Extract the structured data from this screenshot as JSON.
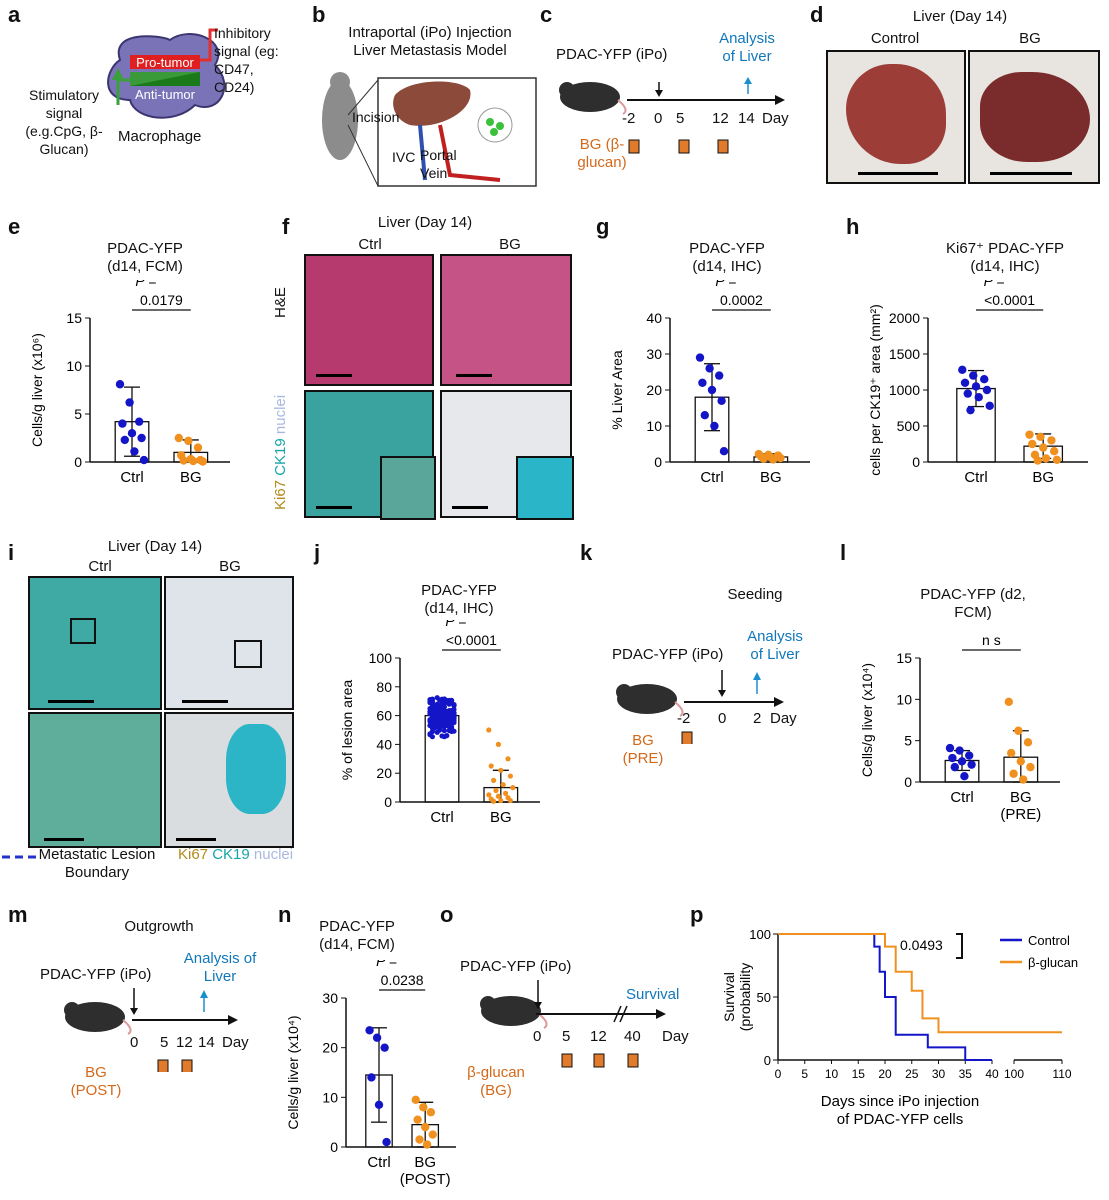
{
  "panels": {
    "a": {
      "letter": "a",
      "inhibitory": "Inhibitory signal (eg: CD47, CD24)",
      "pro": "Pro-tumor",
      "anti": "Anti-tumor",
      "stimulatory": "Stimulatory signal (e.g.CpG, β-Glucan)",
      "macrophage": "Macrophage"
    },
    "b": {
      "letter": "b",
      "title": "Intraportal (iPo) Injection Liver Metastasis Model",
      "incision": "Incision",
      "ivc": "IVC",
      "portal": "Portal Vein"
    },
    "c": {
      "letter": "c",
      "inj": "PDAC-YFP (iPo)",
      "analysis": "Analysis of Liver",
      "ticks": [
        "-2",
        "0",
        "5",
        "12",
        "14",
        "Day"
      ],
      "bg": "BG (β-glucan)"
    },
    "d": {
      "letter": "d",
      "title": "Liver (Day 14)",
      "ctrl": "Control",
      "bg": "BG"
    },
    "e": {
      "letter": "e",
      "title": "PDAC-YFP (d14, FCM)"
    },
    "f": {
      "letter": "f",
      "title": "Liver (Day 14)",
      "ctrl": "Ctrl",
      "bg": "BG",
      "he": "H&E",
      "ki67": "Ki67",
      "ck19": "CK19",
      "nuclei": "nuclei"
    },
    "g": {
      "letter": "g",
      "title": "PDAC-YFP (d14, IHC)"
    },
    "h": {
      "letter": "h",
      "title": "Ki67⁺ PDAC-YFP (d14, IHC)"
    },
    "i": {
      "letter": "i",
      "title": "Liver (Day 14)",
      "ctrl": "Ctrl",
      "bg": "BG",
      "boundary": "Metastatic Lesion Boundary",
      "ki67": "Ki67",
      "ck19": "CK19",
      "nuclei": "nuclei"
    },
    "j": {
      "letter": "j",
      "title": "PDAC-YFP (d14, IHC)"
    },
    "k": {
      "letter": "k",
      "title": "Seeding",
      "inj": "PDAC-YFP (iPo)",
      "analysis": "Analysis of Liver",
      "ticks": [
        "-2",
        "0",
        "2",
        "Day"
      ],
      "bg": "BG (PRE)"
    },
    "l": {
      "letter": "l",
      "title": "PDAC-YFP (d2, FCM)"
    },
    "m": {
      "letter": "m",
      "title": "Outgrowth",
      "inj": "PDAC-YFP (iPo)",
      "analysis": "Analysis of Liver",
      "ticks": [
        "0",
        "5",
        "12",
        "14",
        "Day"
      ],
      "bg": "BG (POST)"
    },
    "n": {
      "letter": "n",
      "title": "PDAC-YFP (d14, FCM)"
    },
    "o": {
      "letter": "o",
      "inj": "PDAC-YFP (iPo)",
      "survival": "Survival",
      "ticks": [
        "0",
        "5",
        "12",
        "40",
        "Day"
      ],
      "bg": "β-glucan (BG)"
    },
    "p": {
      "letter": "p"
    }
  },
  "colors": {
    "ctrl": "#1515c8",
    "bg": "#f0901e",
    "bgbox": "#e07b2c",
    "analysis": "#1a8fd0"
  },
  "chart_data": [
    {
      "id": "e",
      "type": "bar",
      "categories": [
        "Ctrl",
        "BG"
      ],
      "ylabel": "Cells/g liver (x10⁶)",
      "ylim": [
        0,
        15
      ],
      "yticks": [
        0,
        5,
        10,
        15
      ],
      "means": [
        4.2,
        1.0
      ],
      "sd": [
        3.6,
        1.3
      ],
      "points": [
        [
          8.1,
          6.2,
          4.2,
          4.0,
          3.0,
          2.5,
          2.3,
          1.1,
          0.2
        ],
        [
          2.5,
          2.2,
          1.5,
          0.7,
          0.3,
          0.2,
          0.15,
          0.1,
          0.05
        ]
      ],
      "p_label": "P =",
      "p_value": "0.0179"
    },
    {
      "id": "g",
      "type": "bar",
      "categories": [
        "Ctrl",
        "BG"
      ],
      "ylabel": "% Liver Area",
      "ylim": [
        0,
        40
      ],
      "yticks": [
        0,
        10,
        20,
        30,
        40
      ],
      "means": [
        18,
        1.4
      ],
      "sd": [
        9.3,
        0.9
      ],
      "points": [
        [
          29,
          26,
          24,
          22,
          20,
          17,
          13,
          10,
          3
        ],
        [
          2.2,
          2,
          1.8,
          1.5,
          1.3,
          1.1,
          0.9,
          0.7
        ]
      ],
      "p_label": "P =",
      "p_value": "0.0002"
    },
    {
      "id": "h",
      "type": "bar",
      "categories": [
        "Ctrl",
        "BG"
      ],
      "ylabel": "cells per CK19⁺ area (mm²)",
      "ylim": [
        0,
        2000
      ],
      "yticks": [
        0,
        500,
        1000,
        1500,
        2000
      ],
      "means": [
        1020,
        220
      ],
      "sd": [
        250,
        170
      ],
      "points": [
        [
          1280,
          1200,
          1150,
          1100,
          1050,
          1000,
          950,
          900,
          780,
          720
        ],
        [
          380,
          350,
          300,
          250,
          200,
          150,
          100,
          50,
          30,
          20
        ]
      ],
      "p_label": "P =",
      "p_value": "<0.0001"
    },
    {
      "id": "j",
      "type": "bar",
      "categories": [
        "Ctrl",
        "BG"
      ],
      "ylabel": "% of lesion area",
      "ylim": [
        0,
        100
      ],
      "yticks": [
        0,
        20,
        40,
        60,
        80,
        100
      ],
      "means": [
        60,
        10
      ],
      "sd": [
        8,
        12
      ],
      "points": [
        [],
        [
          50,
          40,
          30,
          25,
          22,
          18,
          15,
          12,
          10,
          8,
          6,
          5,
          4,
          3,
          2,
          1,
          1,
          0.5
        ]
      ],
      "p_label": "P =",
      "p_value": "<0.0001"
    },
    {
      "id": "l",
      "type": "bar",
      "categories": [
        "Ctrl",
        "BG (PRE)"
      ],
      "ylabel": "Cells/g liver (x10⁴)",
      "ylim": [
        0,
        15
      ],
      "yticks": [
        0,
        5,
        10,
        15
      ],
      "means": [
        2.6,
        3.0
      ],
      "sd": [
        1.2,
        3.2
      ],
      "points": [
        [
          4.1,
          3.8,
          3.2,
          2.9,
          2.5,
          2.1,
          1.8,
          0.7
        ],
        [
          9.7,
          6.2,
          4.8,
          3.5,
          2.5,
          1.8,
          1.0,
          0.3
        ]
      ],
      "p_label": "",
      "p_value": "n s"
    },
    {
      "id": "n",
      "type": "bar",
      "categories": [
        "Ctrl",
        "BG (POST)"
      ],
      "ylabel": "Cells/g liver (x10⁴)",
      "ylim": [
        0,
        30
      ],
      "yticks": [
        0,
        10,
        20,
        30
      ],
      "means": [
        14.5,
        4.5
      ],
      "sd": [
        9.5,
        4.5
      ],
      "points": [
        [
          23.5,
          22,
          20,
          14,
          8.5,
          1
        ],
        [
          9.5,
          8,
          7,
          5.5,
          4,
          2.5,
          1.5,
          0.5
        ]
      ],
      "p_label": "P =",
      "p_value": "0.0238"
    },
    {
      "id": "p",
      "type": "line",
      "ylabel": "Survival (probability (%))",
      "xlabel": "Days since iPo injection of PDAC-YFP cells",
      "ylim": [
        0,
        100
      ],
      "yticks": [
        0,
        50,
        100
      ],
      "xticks": [
        "0",
        "5",
        "10",
        "15",
        "20",
        "25",
        "30",
        "35",
        "40",
        "100",
        "110"
      ],
      "p_value": "0.0493",
      "series": [
        {
          "name": "Control",
          "x": [
            0,
            18,
            18,
            19,
            19,
            20,
            20,
            22,
            22,
            28,
            28,
            35,
            35,
            40
          ],
          "y": [
            100,
            100,
            90,
            90,
            70,
            70,
            50,
            50,
            20,
            20,
            10,
            10,
            0,
            0
          ]
        },
        {
          "name": "β-glucan",
          "x": [
            0,
            20,
            20,
            22,
            22,
            25,
            25,
            27,
            27,
            30,
            30,
            40,
            100,
            110
          ],
          "y": [
            100,
            100,
            90,
            90,
            70,
            70,
            55,
            55,
            33,
            33,
            22,
            22,
            22,
            22
          ]
        }
      ]
    }
  ]
}
